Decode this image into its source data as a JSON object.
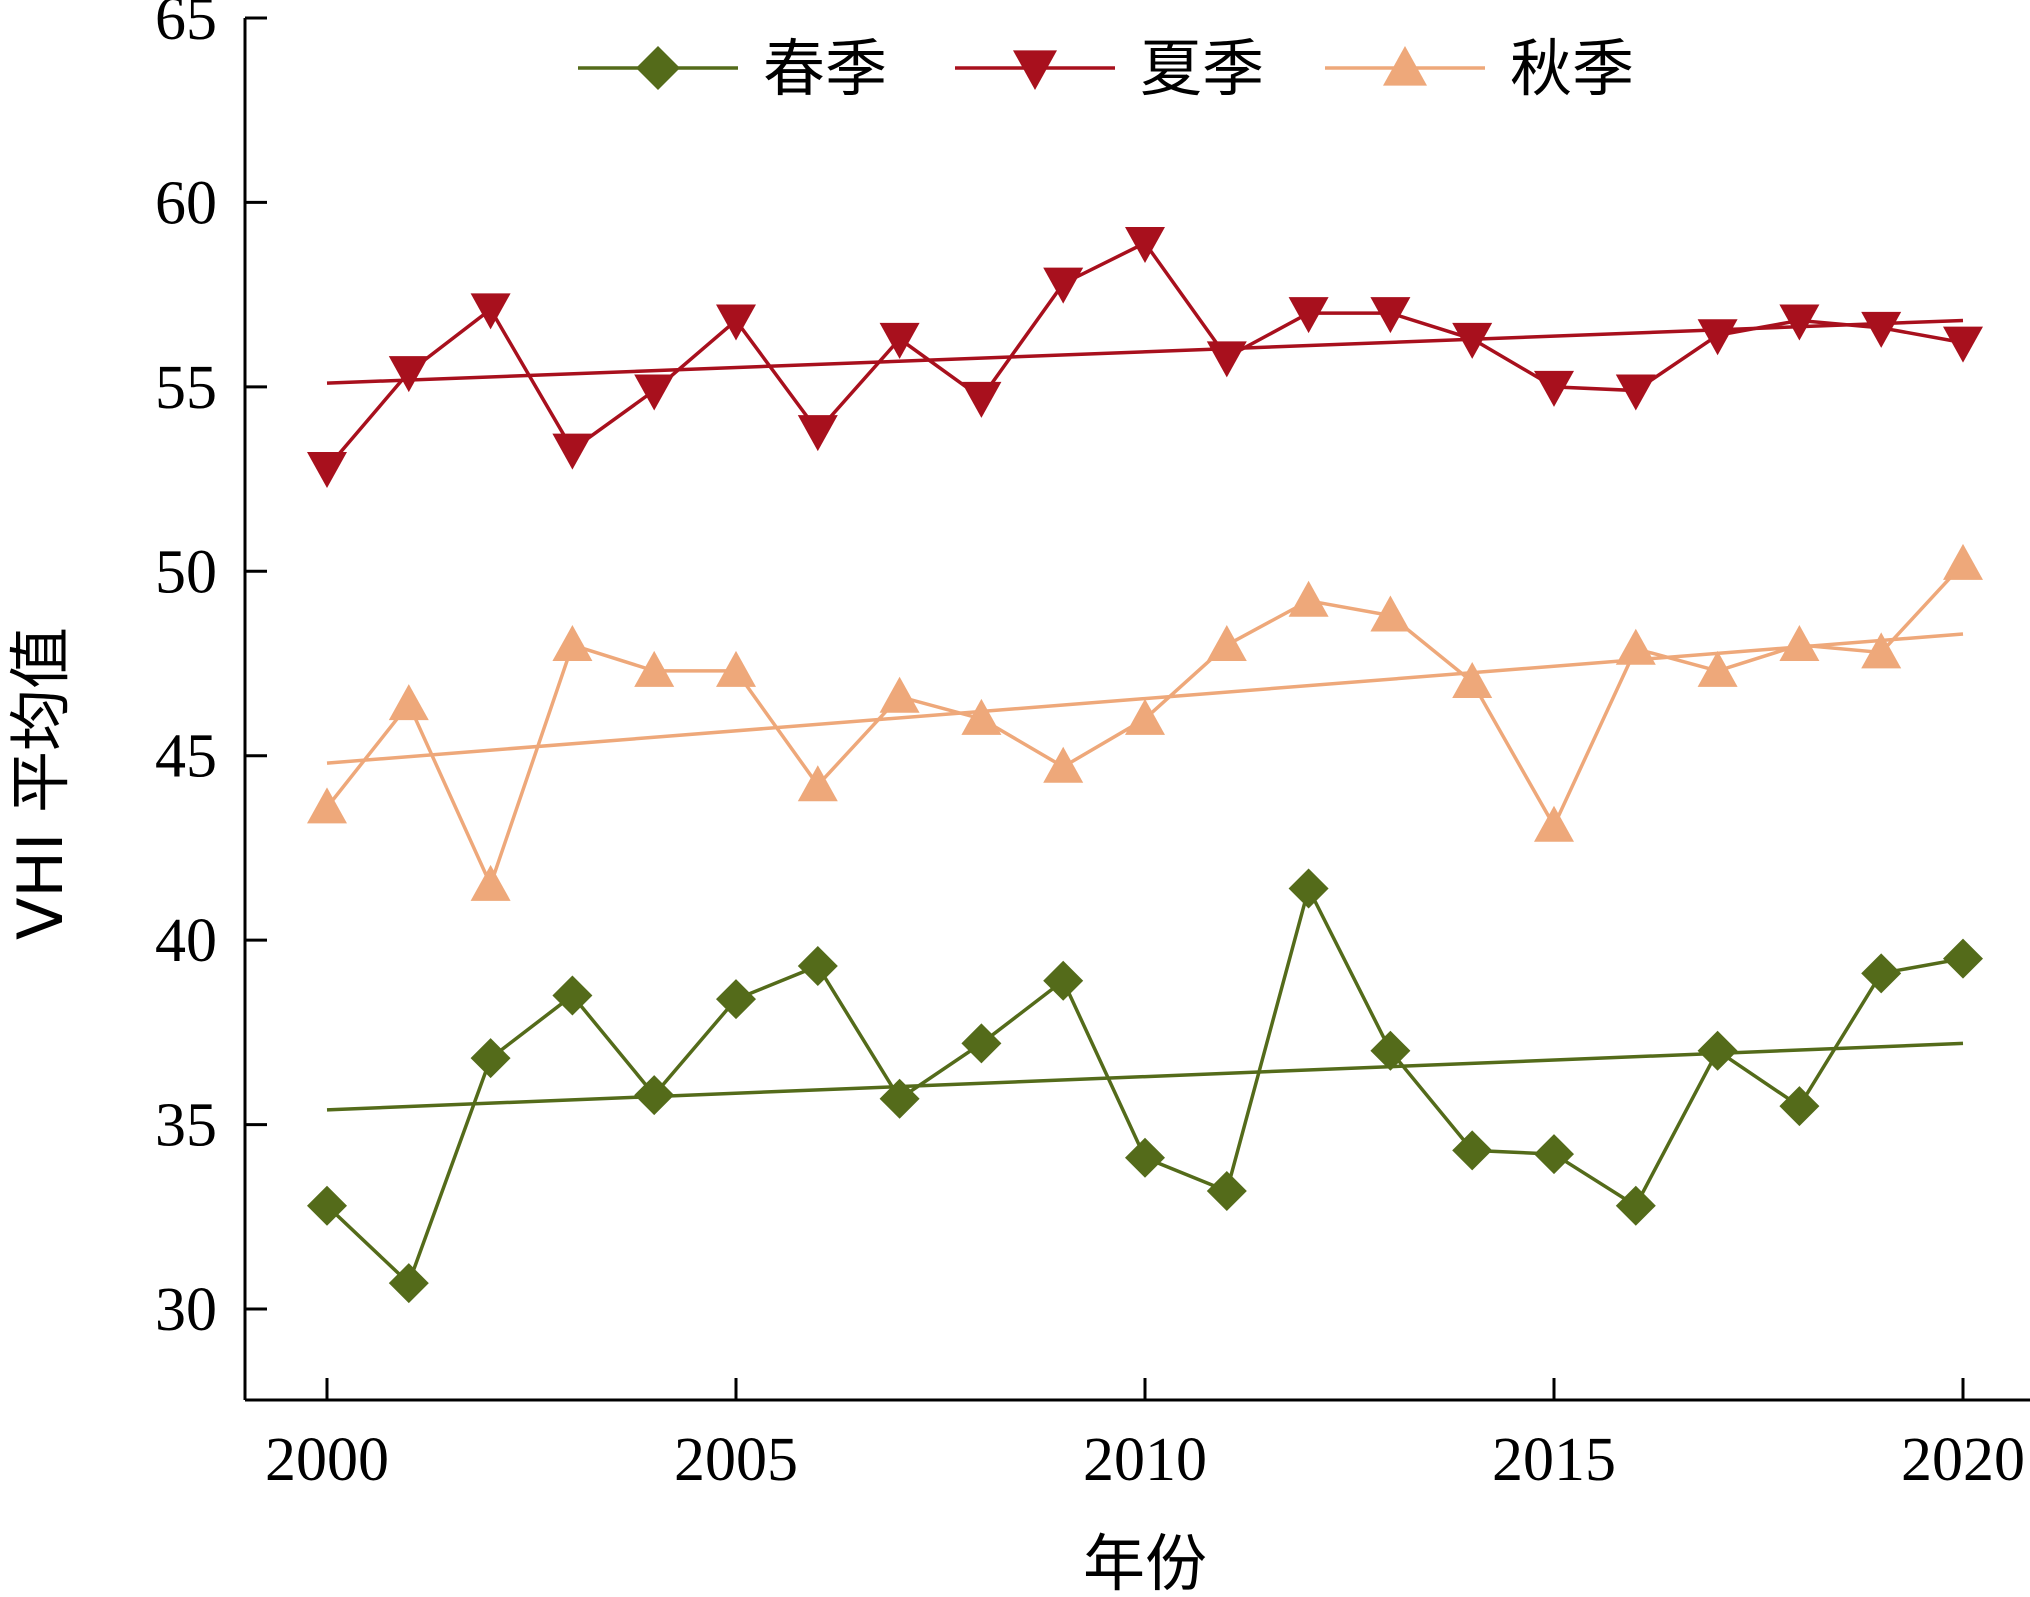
{
  "chart_data": {
    "type": "line",
    "xlabel": "年份",
    "ylabel": "VHI 平均值",
    "xlim": [
      1998,
      2020
    ],
    "ylim": [
      27.5,
      65
    ],
    "xticks": [
      2000,
      2005,
      2010,
      2015,
      2020
    ],
    "yticks": [
      30,
      35,
      40,
      45,
      50,
      55,
      60,
      65
    ],
    "x": [
      2000,
      2001,
      2002,
      2003,
      2004,
      2005,
      2006,
      2007,
      2008,
      2009,
      2010,
      2011,
      2012,
      2013,
      2014,
      2015,
      2016,
      2017,
      2018,
      2019,
      2020
    ],
    "legend_position": "top-center",
    "grid": false,
    "series": [
      {
        "name": "春季",
        "color": "#546b1a",
        "marker": "diamond",
        "values": [
          32.8,
          30.7,
          36.8,
          38.5,
          35.8,
          38.4,
          39.3,
          35.7,
          37.2,
          38.9,
          34.1,
          33.2,
          41.4,
          37.0,
          34.3,
          34.2,
          32.8,
          37.0,
          35.5,
          39.1,
          39.5
        ],
        "trend": [
          35.4,
          37.2
        ]
      },
      {
        "name": "夏季",
        "color": "#a8101d",
        "marker": "triangle-down",
        "values": [
          52.8,
          55.4,
          57.1,
          53.3,
          54.9,
          56.8,
          53.8,
          56.3,
          54.7,
          57.8,
          58.9,
          55.8,
          57.0,
          57.0,
          56.3,
          55.0,
          54.9,
          56.4,
          56.8,
          56.6,
          56.2
        ],
        "trend": [
          55.1,
          56.8
        ]
      },
      {
        "name": "秋季",
        "color": "#eea87a",
        "marker": "triangle-up",
        "values": [
          43.6,
          46.4,
          41.5,
          48.0,
          47.3,
          47.3,
          44.2,
          46.6,
          46.0,
          44.7,
          46.0,
          48.0,
          49.2,
          48.8,
          47.0,
          43.1,
          47.9,
          47.3,
          48.0,
          47.8,
          50.2
        ],
        "trend": [
          44.8,
          48.3
        ]
      }
    ]
  }
}
